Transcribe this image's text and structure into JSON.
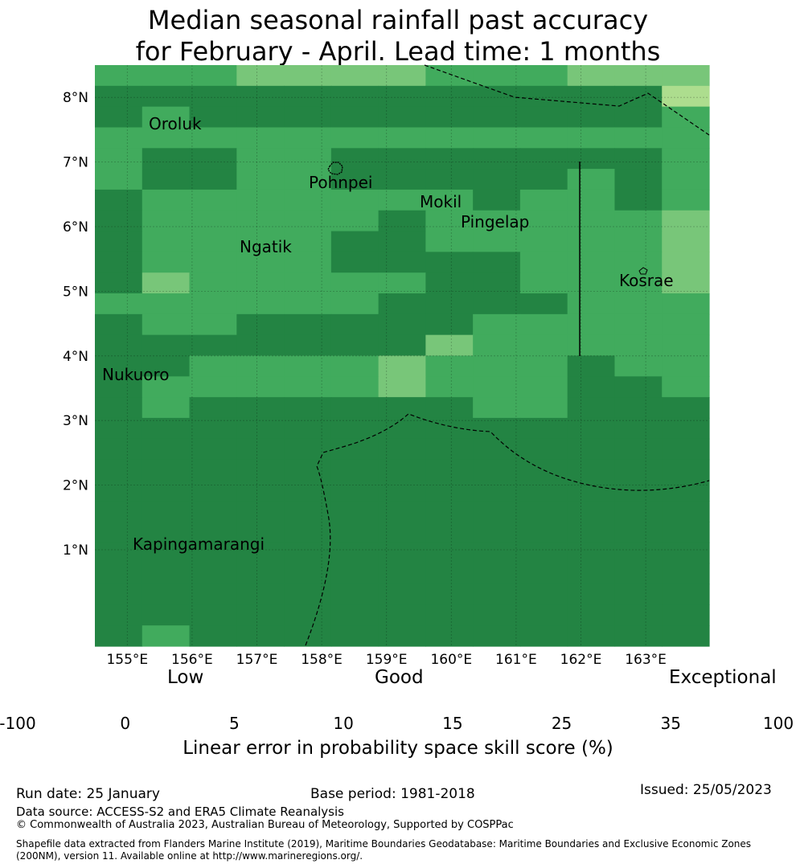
{
  "title": {
    "line1": "Median seasonal rainfall past accuracy",
    "line2": "for February - April. Lead time: 1 months"
  },
  "map": {
    "lat_labels": [
      "8°N",
      "7°N",
      "6°N",
      "5°N",
      "4°N",
      "3°N",
      "2°N",
      "1°N"
    ],
    "lon_labels": [
      "155°E",
      "156°E",
      "157°E",
      "158°E",
      "159°E",
      "160°E",
      "161°E",
      "162°E",
      "163°E"
    ],
    "places": [
      "Oroluk",
      "Pohnpei",
      "Mokil",
      "Pingelap",
      "Ngatik",
      "Kosrae",
      "Nukuoro",
      "Kapingamarangi"
    ],
    "grid": [
      "5554444555444",
      "6666666666663",
      "6566666666665",
      "5555555555555",
      "5665566666665",
      "5665566666565",
      "6555555565565",
      "6555556555554",
      "6555566555554",
      "6555566665554",
      "6455555665554",
      "5555556666555",
      "6556666655555",
      "6666666455555",
      "6655554555655",
      "6555554555665",
      "6566666655666",
      "6666666666666",
      "6666666666666",
      "6666666666666",
      "6666666666666",
      "6666666666666",
      "6666666666666",
      "6666666666666",
      "6666666666666",
      "6666666666666",
      "6666666666666",
      "6566666666666"
    ]
  },
  "legend": {
    "words": [
      "Low",
      "Good",
      "Exceptional"
    ],
    "ticks": [
      "-100",
      "0",
      "5",
      "10",
      "15",
      "25",
      "35",
      "100"
    ],
    "colors": [
      "#ffffff",
      "#ffffcc",
      "#d9f0a3",
      "#addd8e",
      "#78c679",
      "#41ab5d",
      "#238443"
    ],
    "title": "Linear error in probability space skill score (%)"
  },
  "footer": {
    "run_date": "Run date: 25 January",
    "base_period": "Base period: 1981-2018",
    "issued": "Issued: 25/05/2023",
    "data_source": "Data source: ACCESS-S2 and ERA5 Climate Reanalysis",
    "copyright": "© Commonwealth of Australia 2023, Australian Bureau of Meteorology, Supported by COSPPac",
    "shapefile": "Shapefile data extracted from Flanders Marine Institute (2019), Maritime Boundaries Geodatabase: Maritime Boundaries and Exclusive Economic Zones (200NM), version 11. Available online at http://www.marineregions.org/."
  }
}
